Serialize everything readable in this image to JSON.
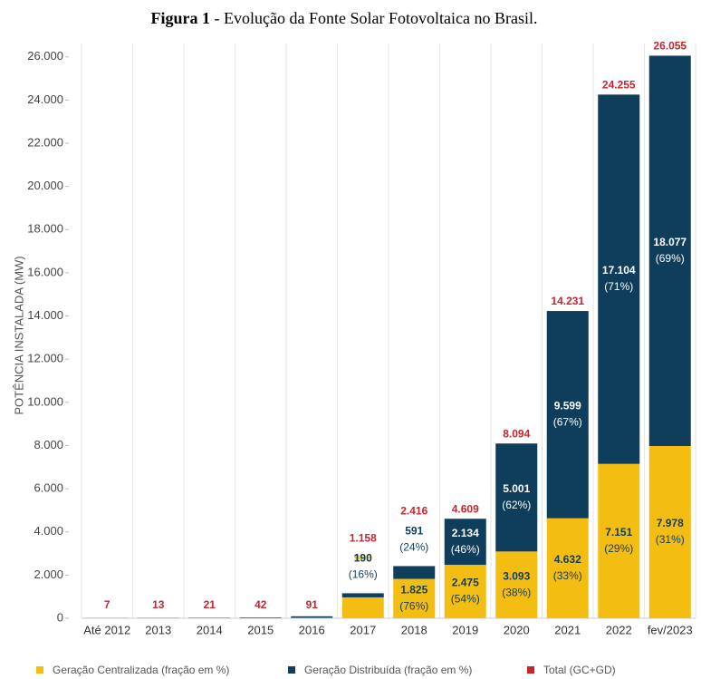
{
  "chart_data": {
    "type": "stacked-bar",
    "title_label": "Figura 1",
    "title": "- Evolução da Fonte Solar Fotovoltaica no Brasil.",
    "y_label": "POTÊNCIA INSTALADA (MW)",
    "categories": [
      "Até 2012",
      "2013",
      "2014",
      "2015",
      "2016",
      "2017",
      "2018",
      "2019",
      "2020",
      "2021",
      "2022",
      "fev/2023"
    ],
    "series": [
      {
        "name": "Geração Centralizada (fração em %)",
        "color": "#f4bd12",
        "label_color": "#0f3d5c",
        "values": [
          1,
          3,
          5,
          20,
          24,
          968,
          1825,
          2475,
          3093,
          4632,
          7151,
          7978
        ],
        "value_labels": [
          null,
          null,
          null,
          null,
          null,
          "968",
          "1.825",
          "2.475",
          "3.093",
          "4.632",
          "7.151",
          "7.978"
        ],
        "percent_labels": [
          null,
          null,
          null,
          null,
          null,
          null,
          "(76%)",
          "(54%)",
          "(38%)",
          "(33%)",
          "(29%)",
          "(31%)"
        ]
      },
      {
        "name": "Geração Distribuída (fração em %)",
        "color": "#0f3d5c",
        "label_color": "#ffffff",
        "values": [
          6,
          10,
          16,
          22,
          67,
          190,
          591,
          2134,
          5001,
          9599,
          17104,
          18077
        ],
        "value_labels": [
          null,
          null,
          null,
          null,
          null,
          "190",
          "591",
          "2.134",
          "5.001",
          "9.599",
          "17.104",
          "18.077"
        ],
        "percent_labels": [
          null,
          null,
          null,
          null,
          null,
          "(16%)",
          "(24%)",
          "(46%)",
          "(62%)",
          "(67%)",
          "(71%)",
          "(69%)"
        ]
      }
    ],
    "totals": {
      "name": "Total (GC+GD)",
      "color": "#c4262e",
      "values": [
        7,
        13,
        21,
        42,
        91,
        1158,
        2416,
        4609,
        8094,
        14231,
        24255,
        26055
      ],
      "value_labels": [
        "7",
        "13",
        "21",
        "42",
        "91",
        "1.158",
        "2.416",
        "4.609",
        "8.094",
        "14.231",
        "24.255",
        "26.055"
      ]
    },
    "ylim": [
      0,
      26200
    ],
    "yticks": [
      0,
      {
        "value": 2000,
        "label": "2.000"
      },
      {
        "value": 4000,
        "label": "4.000"
      },
      {
        "value": 6000,
        "label": "6.000"
      },
      {
        "value": 8000,
        "label": "8.000"
      },
      {
        "value": 10000,
        "label": "10.000"
      },
      {
        "value": 12000,
        "label": "12.000"
      },
      {
        "value": 14000,
        "label": "14.000"
      },
      {
        "value": 16000,
        "label": "16.000"
      },
      {
        "value": 18000,
        "label": "18.000"
      },
      {
        "value": 20000,
        "label": "20.000"
      },
      {
        "value": 22000,
        "label": "22.000"
      },
      {
        "value": 24000,
        "label": "24.000"
      },
      {
        "value": 26000,
        "label": "26.000"
      }
    ]
  }
}
